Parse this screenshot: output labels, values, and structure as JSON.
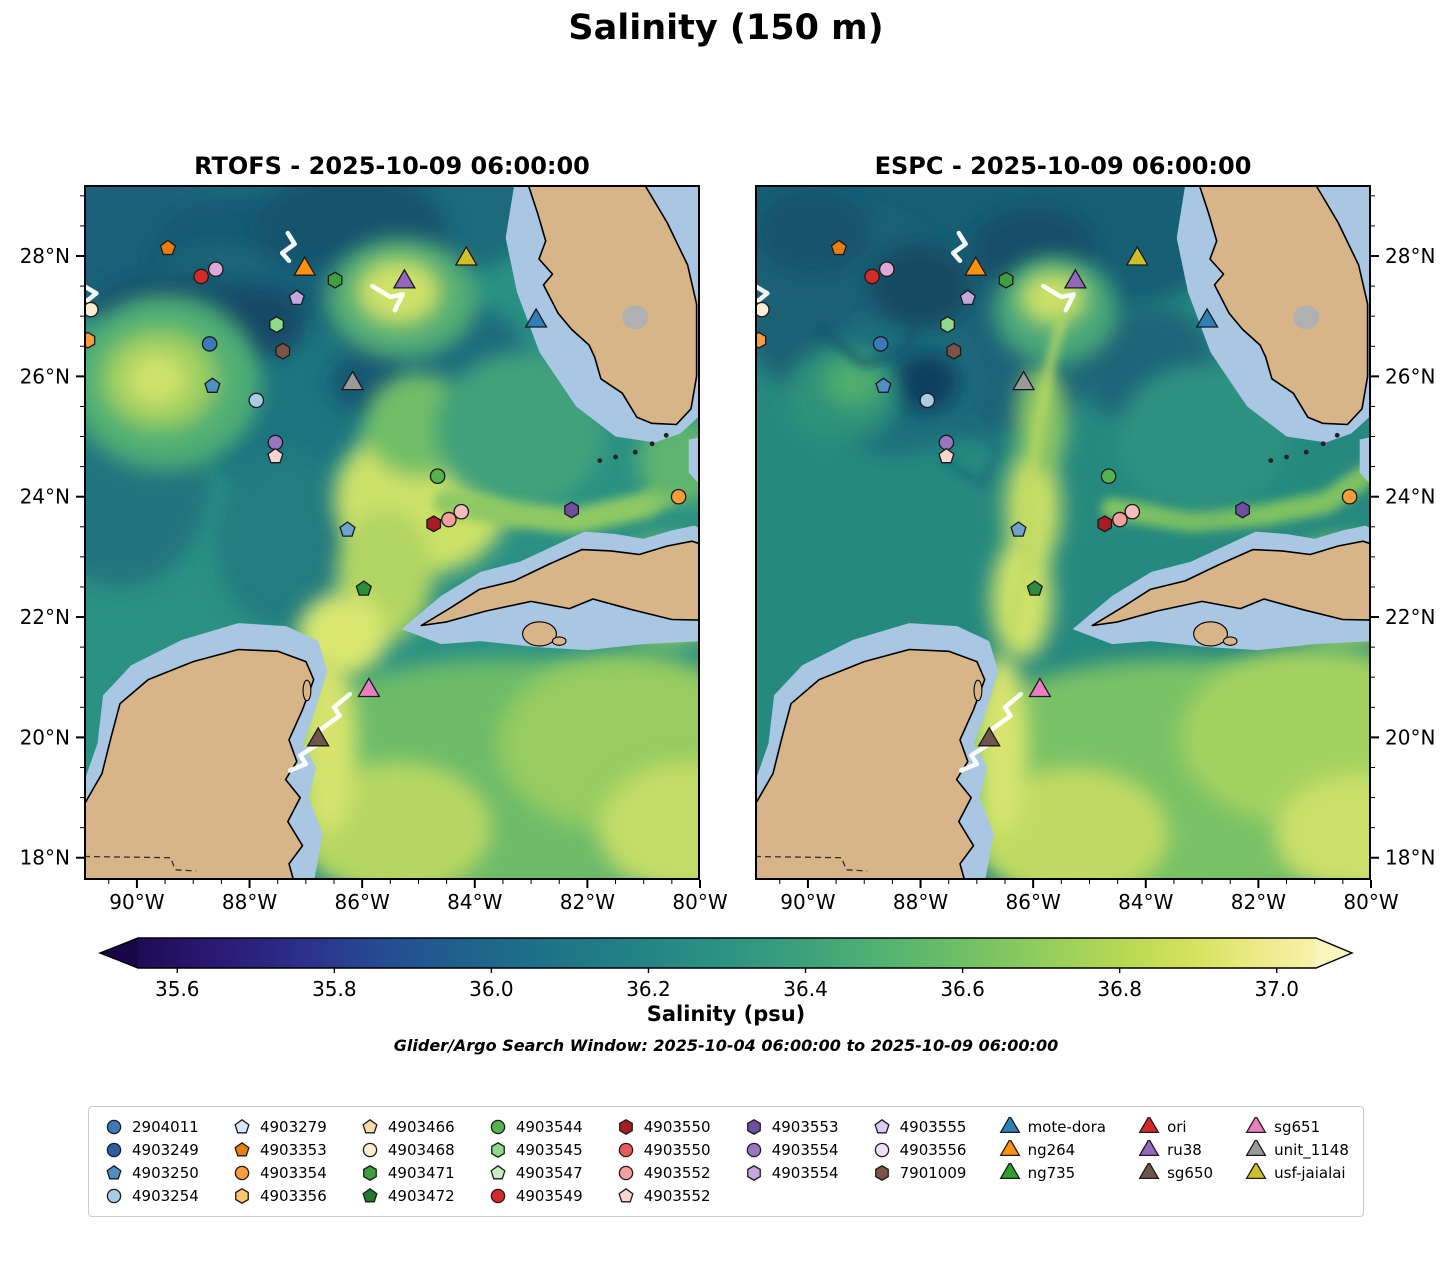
{
  "figure": {
    "title": "Salinity (150 m)",
    "search_window": "Glider/Argo Search Window: 2025-10-04 06:00:00 to 2025-10-09 06:00:00"
  },
  "chart_data": {
    "type": "heatmap",
    "description": "Side-by-side maps of modeled salinity at 150 m depth over the Gulf of Mexico (RTOFS vs ESPC) with Argo float and glider positions and white glider tracks",
    "subplots": [
      {
        "model": "RTOFS",
        "title": "RTOFS - 2025-10-09 06:00:00"
      },
      {
        "model": "ESPC",
        "title": "ESPC - 2025-10-09 06:00:00"
      }
    ],
    "lon_range": [
      -90.94,
      -80.0
    ],
    "lat_range": [
      17.63,
      29.18
    ],
    "lon_ticks": [
      {
        "label": "90°W",
        "value": -90
      },
      {
        "label": "88°W",
        "value": -88
      },
      {
        "label": "86°W",
        "value": -86
      },
      {
        "label": "84°W",
        "value": -84
      },
      {
        "label": "82°W",
        "value": -82
      },
      {
        "label": "80°W",
        "value": -80
      }
    ],
    "lat_ticks": [
      {
        "label": "28°N",
        "value": 28
      },
      {
        "label": "26°N",
        "value": 26
      },
      {
        "label": "24°N",
        "value": 24
      },
      {
        "label": "22°N",
        "value": 22
      },
      {
        "label": "20°N",
        "value": 20
      },
      {
        "label": "18°N",
        "value": 18
      }
    ],
    "colorbar": {
      "label": "Salinity (psu)",
      "min": 35.55,
      "max": 37.05,
      "extend": "both",
      "ticks": [
        {
          "label": "35.6",
          "value": 35.6
        },
        {
          "label": "35.8",
          "value": 35.8
        },
        {
          "label": "36.0",
          "value": 36.0
        },
        {
          "label": "36.2",
          "value": 36.2
        },
        {
          "label": "36.4",
          "value": 36.4
        },
        {
          "label": "36.6",
          "value": 36.6
        },
        {
          "label": "36.8",
          "value": 36.8
        },
        {
          "label": "37.0",
          "value": 37.0
        }
      ],
      "stops": [
        [
          0.0,
          "#1f0c56"
        ],
        [
          0.07,
          "#2a1a75"
        ],
        [
          0.14,
          "#2c308b"
        ],
        [
          0.21,
          "#254c93"
        ],
        [
          0.28,
          "#1f628c"
        ],
        [
          0.35,
          "#1d7387"
        ],
        [
          0.42,
          "#228285"
        ],
        [
          0.49,
          "#2b9183"
        ],
        [
          0.56,
          "#3aa07c"
        ],
        [
          0.63,
          "#52b172"
        ],
        [
          0.7,
          "#6fbf66"
        ],
        [
          0.77,
          "#93cd5c"
        ],
        [
          0.84,
          "#b8d952"
        ],
        [
          0.9,
          "#d8e360"
        ],
        [
          0.96,
          "#eeeb8f"
        ],
        [
          1.0,
          "#f6f2ac"
        ]
      ],
      "tip_low": "#180747",
      "tip_high": "#f8f5bd"
    },
    "markers": [
      {
        "shape": "pentagon",
        "color": "#e87d10",
        "lon": -89.45,
        "lat": 28.13
      },
      {
        "shape": "circle",
        "color": "#d42a2a",
        "lon": -88.86,
        "lat": 27.66
      },
      {
        "shape": "circle",
        "color": "#e0a8d8",
        "lon": -88.6,
        "lat": 27.78
      },
      {
        "shape": "circle",
        "color": "#fcecd2",
        "lon": -90.82,
        "lat": 27.11
      },
      {
        "shape": "hexagon",
        "color": "#f59e3f",
        "lon": -90.87,
        "lat": 26.6
      },
      {
        "shape": "triangle",
        "color": "#ff9010",
        "lon": -87.02,
        "lat": 27.78,
        "name": "ng264"
      },
      {
        "shape": "pentagon",
        "color": "#c2a8dc",
        "lon": -87.16,
        "lat": 27.3
      },
      {
        "shape": "hexagon",
        "color": "#3f9e3f",
        "lon": -86.48,
        "lat": 27.6
      },
      {
        "shape": "triangle",
        "color": "#9467bd",
        "lon": -85.25,
        "lat": 27.57,
        "name": "ru38"
      },
      {
        "shape": "hexagon",
        "color": "#8fd98a",
        "lon": -87.52,
        "lat": 26.86
      },
      {
        "shape": "triangle",
        "color": "#cfc02a",
        "lon": -84.15,
        "lat": 27.95,
        "name": "usf-jaialai"
      },
      {
        "shape": "triangle",
        "color": "#2f7fb8",
        "lon": -82.91,
        "lat": 26.92,
        "name": "mote-dora"
      },
      {
        "shape": "circle",
        "color": "#3a7ab8",
        "lon": -88.71,
        "lat": 26.54
      },
      {
        "shape": "hexagon",
        "color": "#7d5348",
        "lon": -87.41,
        "lat": 26.42
      },
      {
        "shape": "pentagon",
        "color": "#4f8fc4",
        "lon": -88.66,
        "lat": 25.84
      },
      {
        "shape": "triangle",
        "color": "#9a9a9a",
        "lon": -86.17,
        "lat": 25.88,
        "name": "unit_1148"
      },
      {
        "shape": "circle",
        "color": "#a7cde6",
        "lon": -87.88,
        "lat": 25.6
      },
      {
        "shape": "circle",
        "color": "#9877c0",
        "lon": -87.54,
        "lat": 24.9
      },
      {
        "shape": "pentagon",
        "color": "#fcd4d0",
        "lon": -87.54,
        "lat": 24.67
      },
      {
        "shape": "circle",
        "color": "#55b24f",
        "lon": -84.66,
        "lat": 24.34
      },
      {
        "shape": "pentagon",
        "color": "#6fa3cc",
        "lon": -86.26,
        "lat": 23.45
      },
      {
        "shape": "hexagon",
        "color": "#a81c24",
        "lon": -84.73,
        "lat": 23.55
      },
      {
        "shape": "circle",
        "color": "#f59f9f",
        "lon": -84.46,
        "lat": 23.62
      },
      {
        "shape": "circle",
        "color": "#f8bcbc",
        "lon": -84.24,
        "lat": 23.75
      },
      {
        "shape": "hexagon",
        "color": "#6f4fa0",
        "lon": -82.28,
        "lat": 23.78
      },
      {
        "shape": "circle",
        "color": "#f89c3c",
        "lon": -80.38,
        "lat": 24.0
      },
      {
        "shape": "pentagon",
        "color": "#2e8b3a",
        "lon": -85.97,
        "lat": 22.47
      },
      {
        "shape": "triangle",
        "color": "#e87fc0",
        "lon": -85.88,
        "lat": 20.78,
        "name": "sg651"
      },
      {
        "shape": "triangle",
        "color": "#6e564a",
        "lon": -86.78,
        "lat": 19.96,
        "name": "sg650"
      }
    ],
    "tracks": [
      {
        "points": [
          [
            -87.32,
            28.38
          ],
          [
            -87.2,
            28.2
          ],
          [
            -87.42,
            28.05
          ],
          [
            -87.3,
            27.92
          ]
        ]
      },
      {
        "points": [
          [
            -85.82,
            27.5
          ],
          [
            -85.5,
            27.32
          ],
          [
            -85.28,
            27.36
          ],
          [
            -85.42,
            27.1
          ]
        ]
      },
      {
        "points": [
          [
            -90.94,
            27.5
          ],
          [
            -90.72,
            27.38
          ],
          [
            -90.88,
            27.26
          ]
        ]
      },
      {
        "points": [
          [
            -86.22,
            20.72
          ],
          [
            -86.5,
            20.5
          ],
          [
            -86.4,
            20.36
          ],
          [
            -86.78,
            20.1
          ],
          [
            -86.68,
            19.95
          ],
          [
            -87.1,
            19.7
          ],
          [
            -87.0,
            19.56
          ],
          [
            -87.28,
            19.45
          ]
        ]
      }
    ],
    "legend_columns": [
      [
        {
          "label": "2904011",
          "shape": "circle",
          "color": "#3a7ab8"
        },
        {
          "label": "4903249",
          "shape": "circle",
          "color": "#2a5fa0"
        },
        {
          "label": "4903250",
          "shape": "pentagon",
          "color": "#4f8fc4"
        },
        {
          "label": "4903254",
          "shape": "circle",
          "color": "#a7cde6"
        }
      ],
      [
        {
          "label": "4903279",
          "shape": "pentagon",
          "color": "#d6e9f5"
        },
        {
          "label": "4903353",
          "shape": "pentagon",
          "color": "#e87d10"
        },
        {
          "label": "4903354",
          "shape": "circle",
          "color": "#f89c3c"
        },
        {
          "label": "4903356",
          "shape": "hexagon",
          "color": "#fbc46f"
        }
      ],
      [
        {
          "label": "4903466",
          "shape": "pentagon",
          "color": "#f7dba6"
        },
        {
          "label": "4903468",
          "shape": "circle",
          "color": "#fcecd2"
        },
        {
          "label": "4903471",
          "shape": "hexagon",
          "color": "#3f9e3f"
        },
        {
          "label": "4903472",
          "shape": "pentagon",
          "color": "#1f7a2e"
        }
      ],
      [
        {
          "label": "4903544",
          "shape": "circle",
          "color": "#55b24f"
        },
        {
          "label": "4903545",
          "shape": "hexagon",
          "color": "#8fd98a"
        },
        {
          "label": "4903547",
          "shape": "pentagon",
          "color": "#c7eebf"
        },
        {
          "label": "4903549",
          "shape": "circle",
          "color": "#d42a2a"
        }
      ],
      [
        {
          "label": "4903550",
          "shape": "hexagon",
          "color": "#a81c24"
        },
        {
          "label": "4903550",
          "shape": "circle",
          "color": "#e85b5b"
        },
        {
          "label": "4903552",
          "shape": "circle",
          "color": "#f59f9f"
        },
        {
          "label": "4903552",
          "shape": "pentagon",
          "color": "#fcd4d0"
        }
      ],
      [
        {
          "label": "4903553",
          "shape": "hexagon",
          "color": "#6f4fa0"
        },
        {
          "label": "4903554",
          "shape": "circle",
          "color": "#9877c0"
        },
        {
          "label": "4903554",
          "shape": "hexagon",
          "color": "#c2a8dc"
        }
      ],
      [
        {
          "label": "4903555",
          "shape": "pentagon",
          "color": "#dccbee"
        },
        {
          "label": "4903556",
          "shape": "circle",
          "color": "#efe0f5"
        },
        {
          "label": "7901009",
          "shape": "hexagon",
          "color": "#7d5348"
        }
      ],
      [
        {
          "label": "mote-dora",
          "shape": "triangle",
          "color": "#2f7fb8"
        },
        {
          "label": "ng264",
          "shape": "triangle",
          "color": "#ff9010"
        },
        {
          "label": "ng735",
          "shape": "triangle",
          "color": "#2ca02c"
        }
      ],
      [
        {
          "label": "ori",
          "shape": "triangle",
          "color": "#d62728"
        },
        {
          "label": "ru38",
          "shape": "triangle",
          "color": "#9467bd"
        },
        {
          "label": "sg650",
          "shape": "triangle",
          "color": "#6e564a"
        }
      ],
      [
        {
          "label": "sg651",
          "shape": "triangle",
          "color": "#e87fc0"
        },
        {
          "label": "unit_1148",
          "shape": "triangle",
          "color": "#9a9a9a"
        },
        {
          "label": "usf-jaialai",
          "shape": "triangle",
          "color": "#cfc02a"
        }
      ]
    ]
  },
  "colors": {
    "land": "#d7b588",
    "shallow_water": "#a9c6e3",
    "coastline": "#000000",
    "lake_gray": "#b0b0b0",
    "track_white": "#ffffff"
  }
}
